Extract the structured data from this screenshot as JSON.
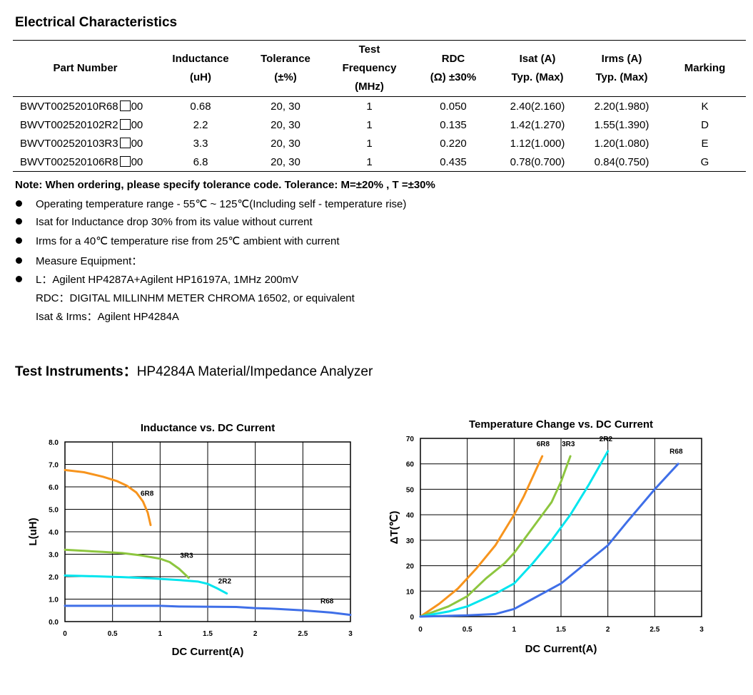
{
  "section_title": "Electrical Characteristics",
  "table": {
    "headers": [
      {
        "lines": [
          "Part Number"
        ]
      },
      {
        "lines": [
          "Inductance",
          "(uH)"
        ]
      },
      {
        "lines": [
          "Tolerance",
          "(±%)"
        ]
      },
      {
        "lines": [
          "Test",
          "Frequency",
          "(MHz)"
        ]
      },
      {
        "lines": [
          "RDC",
          "(Ω) ±30%"
        ]
      },
      {
        "lines": [
          "Isat (A)",
          "Typ. (Max)"
        ]
      },
      {
        "lines": [
          "Irms (A)",
          "Typ. (Max)"
        ]
      },
      {
        "lines": [
          "Marking"
        ]
      }
    ],
    "rows": [
      {
        "part_prefix": "BWVT00252010R68",
        "part_suffix": "00",
        "inductance": "0.68",
        "tolerance": "20, 30",
        "freq": "1",
        "rdc": "0.050",
        "isat": "2.40(2.160)",
        "irms": "2.20(1.980)",
        "marking": "K"
      },
      {
        "part_prefix": "BWVT002520102R2",
        "part_suffix": "00",
        "inductance": "2.2",
        "tolerance": "20, 30",
        "freq": "1",
        "rdc": "0.135",
        "isat": "1.42(1.270)",
        "irms": "1.55(1.390)",
        "marking": "D"
      },
      {
        "part_prefix": "BWVT002520103R3",
        "part_suffix": "00",
        "inductance": "3.3",
        "tolerance": "20, 30",
        "freq": "1",
        "rdc": "0.220",
        "isat": "1.12(1.000)",
        "irms": "1.20(1.080)",
        "marking": "E"
      },
      {
        "part_prefix": "BWVT002520106R8",
        "part_suffix": "00",
        "inductance": "6.8",
        "tolerance": "20, 30",
        "freq": "1",
        "rdc": "0.435",
        "isat": "0.78(0.700)",
        "irms": "0.84(0.750)",
        "marking": "G"
      }
    ]
  },
  "note": "Note: When ordering, please specify tolerance code. Tolerance: M=±20% , T =±30%",
  "bullets": {
    "b1": "Operating temperature range - 55℃ ~ 125℃(Including self - temperature rise)",
    "b2": "Isat for Inductance drop 30% from its value without current",
    "b3": "Irms for a 40℃  temperature rise from 25℃  ambient with current",
    "b4": "Measure Equipment：",
    "b5": "L：Agilent HP4287A+Agilent HP16197A, 1MHz 200mV",
    "sub1": "RDC：DIGITAL MILLINHM METER CHROMA 16502, or equivalent",
    "sub2": "Isat & Irms：Agilent HP4284A"
  },
  "test_instruments": {
    "label": "Test Instruments：",
    "value": "HP4284A Material/Impedance Analyzer"
  },
  "chart_data": [
    {
      "type": "line",
      "title": "Inductance vs. DC Current",
      "xlabel": "DC Current(A)",
      "ylabel": "L(uH)",
      "xlim": [
        0,
        3
      ],
      "ylim": [
        0,
        8
      ],
      "x_ticks": [
        "0",
        "0.5",
        "1",
        "1.5",
        "2",
        "2.5",
        "3"
      ],
      "y_ticks": [
        "0.0",
        "1.0",
        "2.0",
        "3.0",
        "4.0",
        "5.0",
        "6.0",
        "7.0",
        "8.0"
      ],
      "grid": true,
      "series": [
        {
          "name": "6R8",
          "color": "#F7941D",
          "points": [
            [
              0,
              6.75
            ],
            [
              0.2,
              6.65
            ],
            [
              0.4,
              6.45
            ],
            [
              0.55,
              6.25
            ],
            [
              0.65,
              6.05
            ],
            [
              0.75,
              5.75
            ],
            [
              0.82,
              5.35
            ],
            [
              0.87,
              4.85
            ],
            [
              0.9,
              4.3
            ]
          ]
        },
        {
          "name": "3R3",
          "color": "#8DC63F",
          "points": [
            [
              0,
              3.2
            ],
            [
              0.2,
              3.15
            ],
            [
              0.4,
              3.1
            ],
            [
              0.6,
              3.05
            ],
            [
              0.8,
              2.95
            ],
            [
              1.0,
              2.8
            ],
            [
              1.1,
              2.65
            ],
            [
              1.2,
              2.35
            ],
            [
              1.3,
              1.95
            ]
          ]
        },
        {
          "name": "2R2",
          "color": "#00E5EE",
          "points": [
            [
              0,
              2.05
            ],
            [
              0.3,
              2.02
            ],
            [
              0.6,
              1.98
            ],
            [
              0.9,
              1.93
            ],
            [
              1.2,
              1.85
            ],
            [
              1.4,
              1.78
            ],
            [
              1.5,
              1.68
            ],
            [
              1.6,
              1.48
            ],
            [
              1.7,
              1.25
            ]
          ]
        },
        {
          "name": "R68",
          "color": "#3F6FE8",
          "points": [
            [
              0,
              0.7
            ],
            [
              0.5,
              0.7
            ],
            [
              1.0,
              0.7
            ],
            [
              1.2,
              0.67
            ],
            [
              1.8,
              0.65
            ],
            [
              2.0,
              0.6
            ],
            [
              2.2,
              0.57
            ],
            [
              2.5,
              0.5
            ],
            [
              2.8,
              0.4
            ],
            [
              3.0,
              0.3
            ]
          ]
        }
      ]
    },
    {
      "type": "line",
      "title": "Temperature Change vs. DC Current",
      "xlabel": "DC Current(A)",
      "ylabel": "ΔT(℃)",
      "xlim": [
        0,
        3
      ],
      "ylim": [
        0,
        70
      ],
      "x_ticks": [
        "0",
        "0.5",
        "1",
        "1.5",
        "2",
        "2.5",
        "3"
      ],
      "y_ticks": [
        "0",
        "10",
        "20",
        "30",
        "40",
        "50",
        "60",
        "70"
      ],
      "grid": true,
      "series": [
        {
          "name": "6R8",
          "color": "#F7941D",
          "points": [
            [
              0,
              0
            ],
            [
              0.2,
              5
            ],
            [
              0.4,
              11
            ],
            [
              0.6,
              19
            ],
            [
              0.8,
              28
            ],
            [
              1.0,
              40
            ],
            [
              1.1,
              47
            ],
            [
              1.2,
              55
            ],
            [
              1.3,
              63
            ]
          ]
        },
        {
          "name": "3R3",
          "color": "#8DC63F",
          "points": [
            [
              0,
              0
            ],
            [
              0.3,
              4
            ],
            [
              0.5,
              8
            ],
            [
              0.7,
              15
            ],
            [
              0.9,
              21
            ],
            [
              1.0,
              25
            ],
            [
              1.2,
              35
            ],
            [
              1.4,
              45
            ],
            [
              1.5,
              53
            ],
            [
              1.6,
              63
            ]
          ]
        },
        {
          "name": "2R2",
          "color": "#00E5EE",
          "points": [
            [
              0,
              0
            ],
            [
              0.3,
              2
            ],
            [
              0.5,
              4
            ],
            [
              0.8,
              9
            ],
            [
              1.0,
              13
            ],
            [
              1.2,
              21
            ],
            [
              1.4,
              30
            ],
            [
              1.6,
              40
            ],
            [
              1.8,
              52
            ],
            [
              2.0,
              65
            ]
          ]
        },
        {
          "name": "R68",
          "color": "#3F6FE8",
          "points": [
            [
              0,
              0
            ],
            [
              0.5,
              0.5
            ],
            [
              0.8,
              1
            ],
            [
              1.0,
              3
            ],
            [
              1.2,
              7
            ],
            [
              1.5,
              13
            ],
            [
              1.8,
              22
            ],
            [
              2.0,
              28
            ],
            [
              2.2,
              37
            ],
            [
              2.5,
              50
            ],
            [
              2.75,
              60
            ]
          ]
        }
      ]
    }
  ]
}
